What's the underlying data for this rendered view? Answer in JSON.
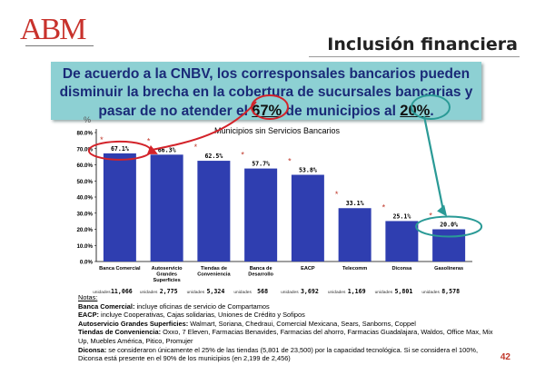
{
  "logo": {
    "text": "ABM"
  },
  "header": {
    "title": "Inclusión financiera"
  },
  "banner": {
    "line1": "De acuerdo a la CNBV, los corresponsales bancarios pueden",
    "line2": "disminuir la brecha en la cobertura de sucursales bancarias y",
    "line3_pre": "pasar de no atender el ",
    "line3_pct1": "67%",
    "line3_mid": " de municipios al ",
    "line3_pct2": "20%",
    "line3_post": "."
  },
  "chart_data": {
    "type": "bar",
    "title": "Municipios sin Servicios Bancarios",
    "ylabel": "%",
    "ylim": [
      0,
      80
    ],
    "y_ticks": [
      "0.0%",
      "10.0%",
      "20.0%",
      "30.0%",
      "40.0%",
      "50.0%",
      "60.0%",
      "70.0%",
      "80.0%"
    ],
    "categories": [
      "Banca Comercial",
      "Autoservicio Grandes Superficies",
      "Tiendas de Conveniencia",
      "Banca de Desarrollo",
      "EACP",
      "Telecomm",
      "Diconsa",
      "Gasolineras"
    ],
    "values": [
      67.1,
      66.3,
      62.5,
      57.7,
      53.8,
      33.1,
      25.1,
      20.0
    ],
    "value_labels": [
      "67.1%",
      "66.3%",
      "62.5%",
      "57.7%",
      "53.8%",
      "33.1%",
      "25.1%",
      "20.0%"
    ],
    "units_label": "unidades",
    "units": [
      "11,066",
      "2,775",
      "5,324",
      "568",
      "3,692",
      "1,169",
      "5,801",
      "8,578"
    ],
    "bar_color": "#2f3eb0",
    "marker": "*",
    "highlight_color_red": "#d3232a",
    "highlight_color_teal": "#2a9a96"
  },
  "notes": {
    "heading": "Notas:",
    "items": [
      {
        "label": "Banca Comercial:",
        "text": " incluye oficinas de servicio de Compartamos"
      },
      {
        "label": "EACP:",
        "text": " incluye Cooperativas, Cajas solidarias, Uniones de Crédito y Sofipos"
      },
      {
        "label": "Autoservicio Grandes Superficies:",
        "text": " Walmart, Soriana, Chedraui, Comercial Mexicana, Sears, Sanborns, Coppel"
      },
      {
        "label": "Tiendas de Conveniencia:",
        "text": " Oxxo, 7 Eleven, Farmacias Benavides, Farmacias del ahorro, Farmacias Guadalajara, Waldos, Office Max, Mix Up, Muebles América, Pitico, Promujer"
      },
      {
        "label": "Diconsa:",
        "text": " se consideraron únicamente el 25% de las tiendas (5,801 de 23,500) por la capacidad tecnológica. Si se considera el 100%, Diconsa está presente en el 90% de los municipios (en 2,199 de 2,456)"
      }
    ]
  },
  "footer": {
    "page_number": "42"
  }
}
